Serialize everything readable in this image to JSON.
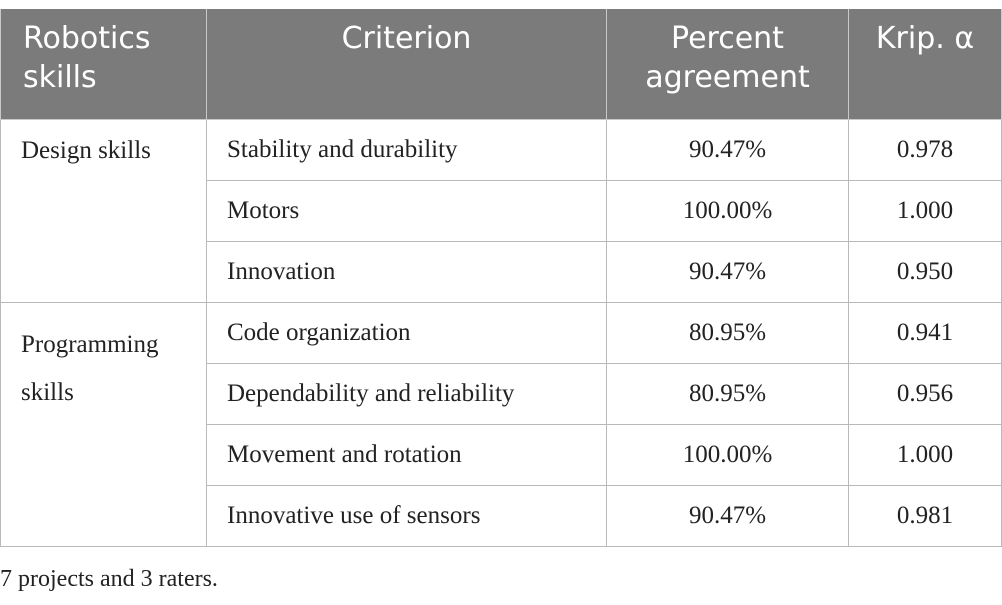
{
  "table": {
    "headers": [
      "Robotics skills",
      "Criterion",
      "Percent agreement",
      "Krip. α"
    ],
    "groups": [
      {
        "name": "Design skills",
        "rows": [
          {
            "criterion": "Stability and durability",
            "percent": "90.47%",
            "alpha": "0.978"
          },
          {
            "criterion": "Motors",
            "percent": "100.00%",
            "alpha": "1.000"
          },
          {
            "criterion": "Innovation",
            "percent": "90.47%",
            "alpha": "0.950"
          }
        ]
      },
      {
        "name": "Programming skills",
        "rows": [
          {
            "criterion": "Code organization",
            "percent": "80.95%",
            "alpha": "0.941"
          },
          {
            "criterion": "Dependability and reliability",
            "percent": "80.95%",
            "alpha": "0.956"
          },
          {
            "criterion": "Movement and rotation",
            "percent": "100.00%",
            "alpha": "1.000"
          },
          {
            "criterion": "Innovative use of sensors",
            "percent": "90.47%",
            "alpha": "0.981"
          }
        ]
      }
    ]
  },
  "footnote": "7 projects and 3 raters."
}
